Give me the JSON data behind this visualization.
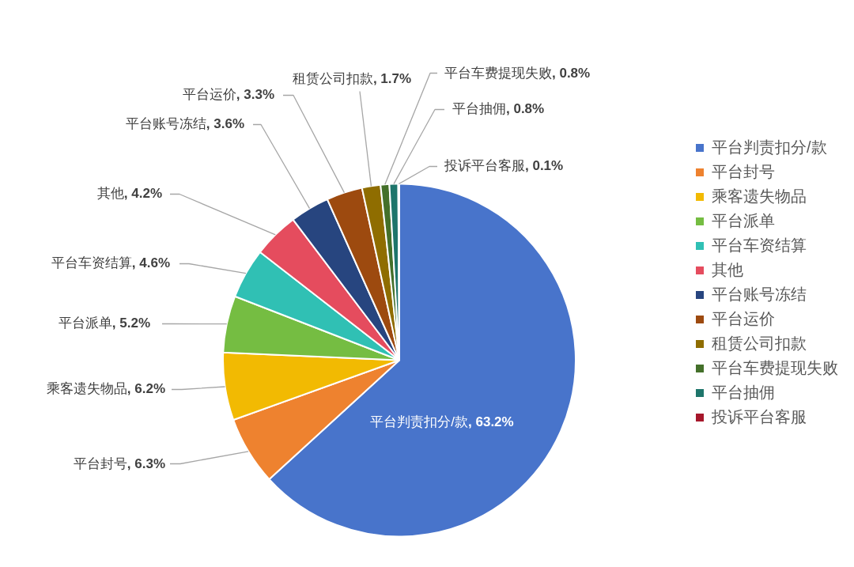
{
  "chart_data": {
    "type": "pie",
    "categories": [
      "平台判责扣分/款",
      "平台封号",
      "乘客遗失物品",
      "平台派单",
      "平台车资结算",
      "其他",
      "平台账号冻结",
      "平台运价",
      "租赁公司扣款",
      "平台车费提现失败",
      "平台抽佣",
      "投诉平台客服"
    ],
    "values": [
      63.2,
      6.3,
      6.2,
      5.2,
      4.6,
      4.2,
      3.6,
      3.3,
      1.7,
      0.8,
      0.8,
      0.1
    ],
    "value_labels": [
      "平台判责扣分/款, 63.2%",
      "平台封号, 6.3%",
      "乘客遗失物品, 6.2%",
      "平台派单, 5.2%",
      "平台车资结算, 4.6%",
      "其他, 4.2%",
      "平台账号冻结, 3.6%",
      "平台运价, 3.3%",
      "租赁公司扣款, 1.7%",
      "平台车费提现失败, 0.8%",
      "平台抽佣, 0.8%",
      "投诉平台客服, 0.1%"
    ],
    "colors": [
      "#4874cb",
      "#ee822f",
      "#f2ba02",
      "#75bd42",
      "#30c0b4",
      "#e54c5e",
      "#27457f",
      "#9d4a0f",
      "#8f6d00",
      "#44702a",
      "#1e756b",
      "#a6172b"
    ],
    "legend": "right"
  }
}
